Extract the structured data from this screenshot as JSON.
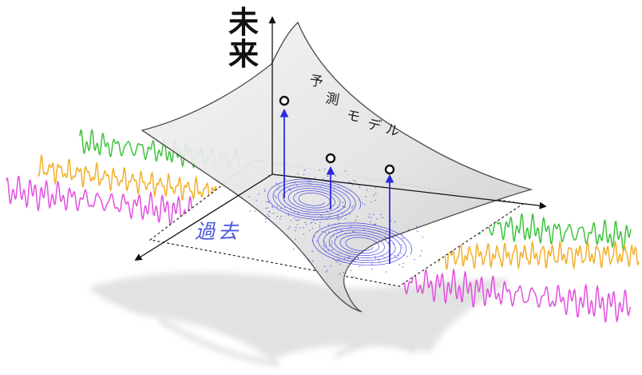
{
  "labels": {
    "future": "未来",
    "past": "過去",
    "model_chars": [
      "予",
      "測",
      "モ",
      "デ",
      "ル"
    ]
  },
  "colors": {
    "green_series": "#3cc33c",
    "orange_series": "#f2b02a",
    "magenta_series": "#e24fe0",
    "attractor": "#2a2ae0",
    "past_label": "#4b5ad8",
    "surface_fill": "#e6e6e6",
    "surface_stroke": "#444444"
  }
}
